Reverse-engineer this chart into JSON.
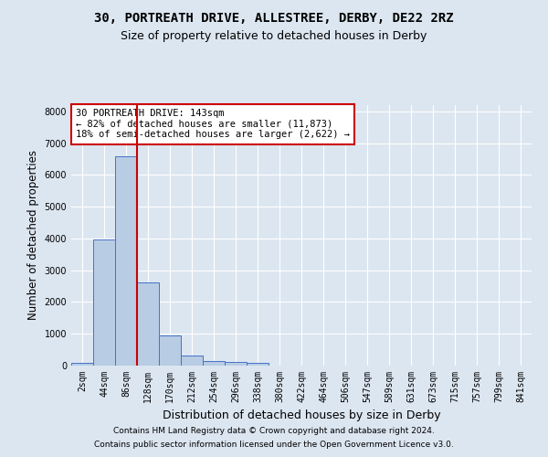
{
  "title1": "30, PORTREATH DRIVE, ALLESTREE, DERBY, DE22 2RZ",
  "title2": "Size of property relative to detached houses in Derby",
  "xlabel": "Distribution of detached houses by size in Derby",
  "ylabel": "Number of detached properties",
  "bar_color": "#b8cce4",
  "bar_edge_color": "#4472c4",
  "background_color": "#dce6f1",
  "plot_bg_color": "#dce6f1",
  "grid_color": "#ffffff",
  "vline_color": "#cc0000",
  "annotation_text": "30 PORTREATH DRIVE: 143sqm\n← 82% of detached houses are smaller (11,873)\n18% of semi-detached houses are larger (2,622) →",
  "annotation_box_color": "#ffffff",
  "annotation_box_edge": "#cc0000",
  "categories": [
    "2sqm",
    "44sqm",
    "86sqm",
    "128sqm",
    "170sqm",
    "212sqm",
    "254sqm",
    "296sqm",
    "338sqm",
    "380sqm",
    "422sqm",
    "464sqm",
    "506sqm",
    "547sqm",
    "589sqm",
    "631sqm",
    "673sqm",
    "715sqm",
    "757sqm",
    "799sqm",
    "841sqm"
  ],
  "values": [
    75,
    3980,
    6580,
    2620,
    960,
    310,
    130,
    110,
    90,
    0,
    0,
    0,
    0,
    0,
    0,
    0,
    0,
    0,
    0,
    0,
    0
  ],
  "ylim": [
    0,
    8200
  ],
  "yticks": [
    0,
    1000,
    2000,
    3000,
    4000,
    5000,
    6000,
    7000,
    8000
  ],
  "footer1": "Contains HM Land Registry data © Crown copyright and database right 2024.",
  "footer2": "Contains public sector information licensed under the Open Government Licence v3.0.",
  "title_fontsize": 10,
  "subtitle_fontsize": 9,
  "axis_label_fontsize": 8.5,
  "tick_fontsize": 7,
  "footer_fontsize": 6.5,
  "annotation_fontsize": 7.5
}
